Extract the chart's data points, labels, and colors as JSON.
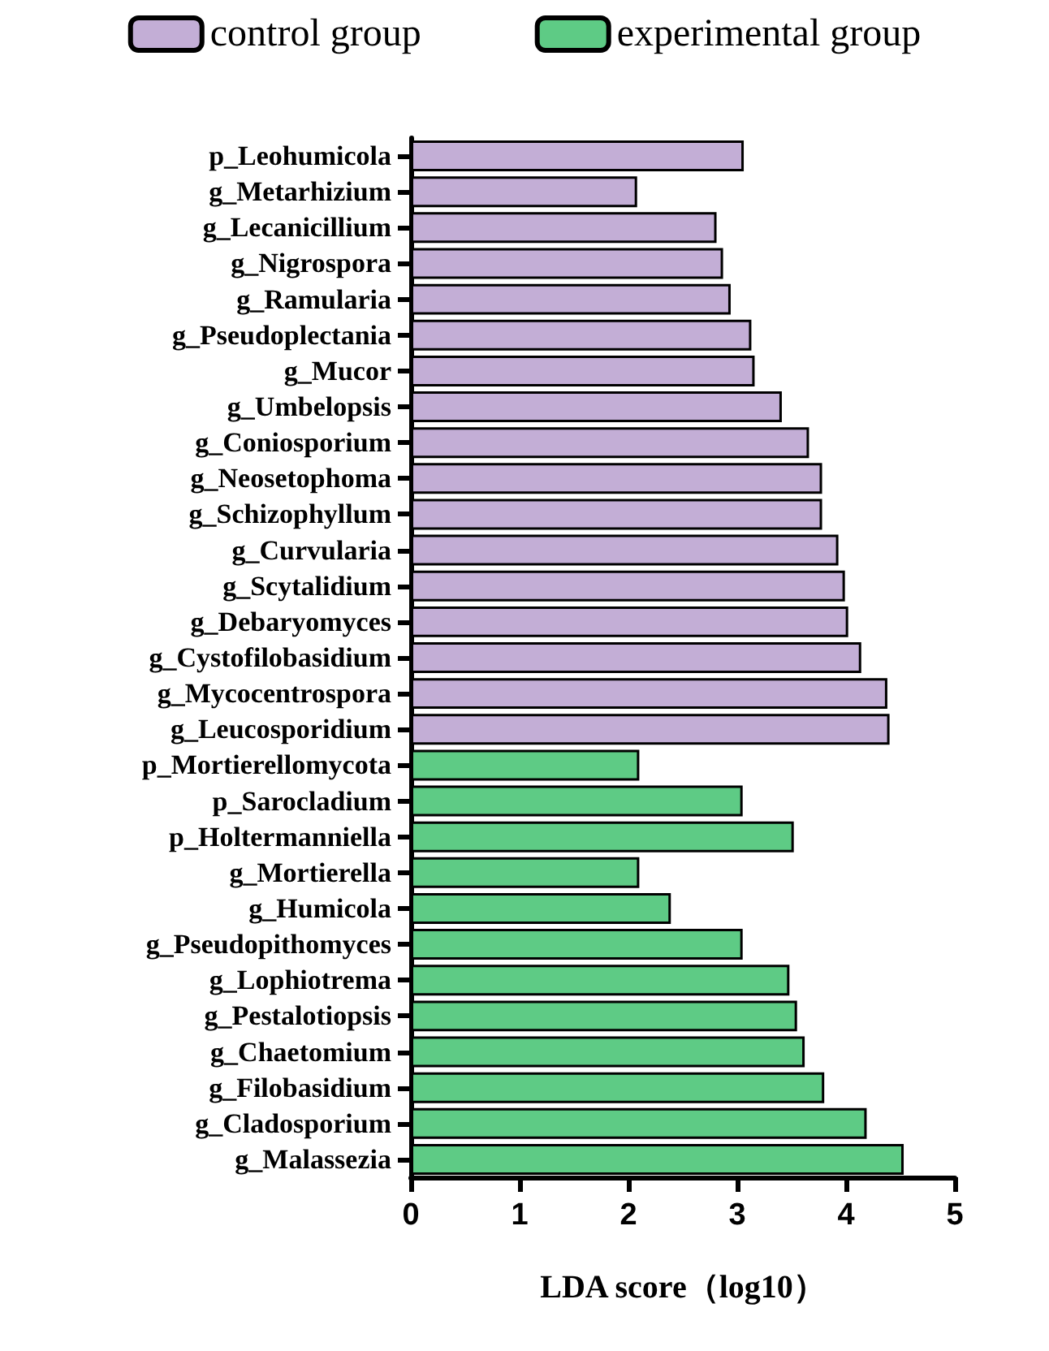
{
  "chart_data": {
    "type": "bar",
    "orientation": "horizontal",
    "xlabel": "LDA score（log10）",
    "legend": "top",
    "categories": [
      "p_Leohumicola",
      "g_Metarhizium",
      "g_Lecanicillium",
      "g_Nigrospora",
      "g_Ramularia",
      "g_Pseudoplectania",
      "g_Mucor",
      "g_Umbelopsis",
      "g_Coniosporium",
      "g_Neosetophoma",
      "g_Schizophyllum",
      "g_Curvularia",
      "g_Scytalidium",
      "g_Debaryomyces",
      "g_Cystofilobasidium",
      "g_Mycocentrospora",
      "g_Leucosporidium",
      "p_Mortierellomycota",
      "p_Sarocladium",
      "p_Holtermanniella",
      "g_Mortierella",
      "g_Humicola",
      "g_Pseudopithomyces",
      "g_Lophiotrema",
      "g_Pestalotiopsis",
      "g_Chaetomium",
      "g_Filobasidium",
      "g_Cladosporium",
      "g_Malassezia"
    ],
    "series": [
      {
        "name": "control group",
        "color": "#c3aed6",
        "values": [
          3.06,
          2.08,
          2.81,
          2.87,
          2.94,
          3.13,
          3.16,
          3.41,
          3.66,
          3.78,
          3.78,
          3.93,
          3.99,
          4.02,
          4.14,
          4.38,
          4.4,
          null,
          null,
          null,
          null,
          null,
          null,
          null,
          null,
          null,
          null,
          null,
          null
        ]
      },
      {
        "name": "experimental group",
        "color": "#5ecb85",
        "values": [
          null,
          null,
          null,
          null,
          null,
          null,
          null,
          null,
          null,
          null,
          null,
          null,
          null,
          null,
          null,
          null,
          null,
          2.1,
          3.05,
          3.52,
          2.1,
          2.39,
          3.05,
          3.48,
          3.55,
          3.62,
          3.8,
          4.19,
          4.53
        ]
      }
    ],
    "xlim": [
      0,
      5
    ],
    "xticks": [
      0,
      1,
      2,
      3,
      4,
      5
    ],
    "grid": false
  }
}
